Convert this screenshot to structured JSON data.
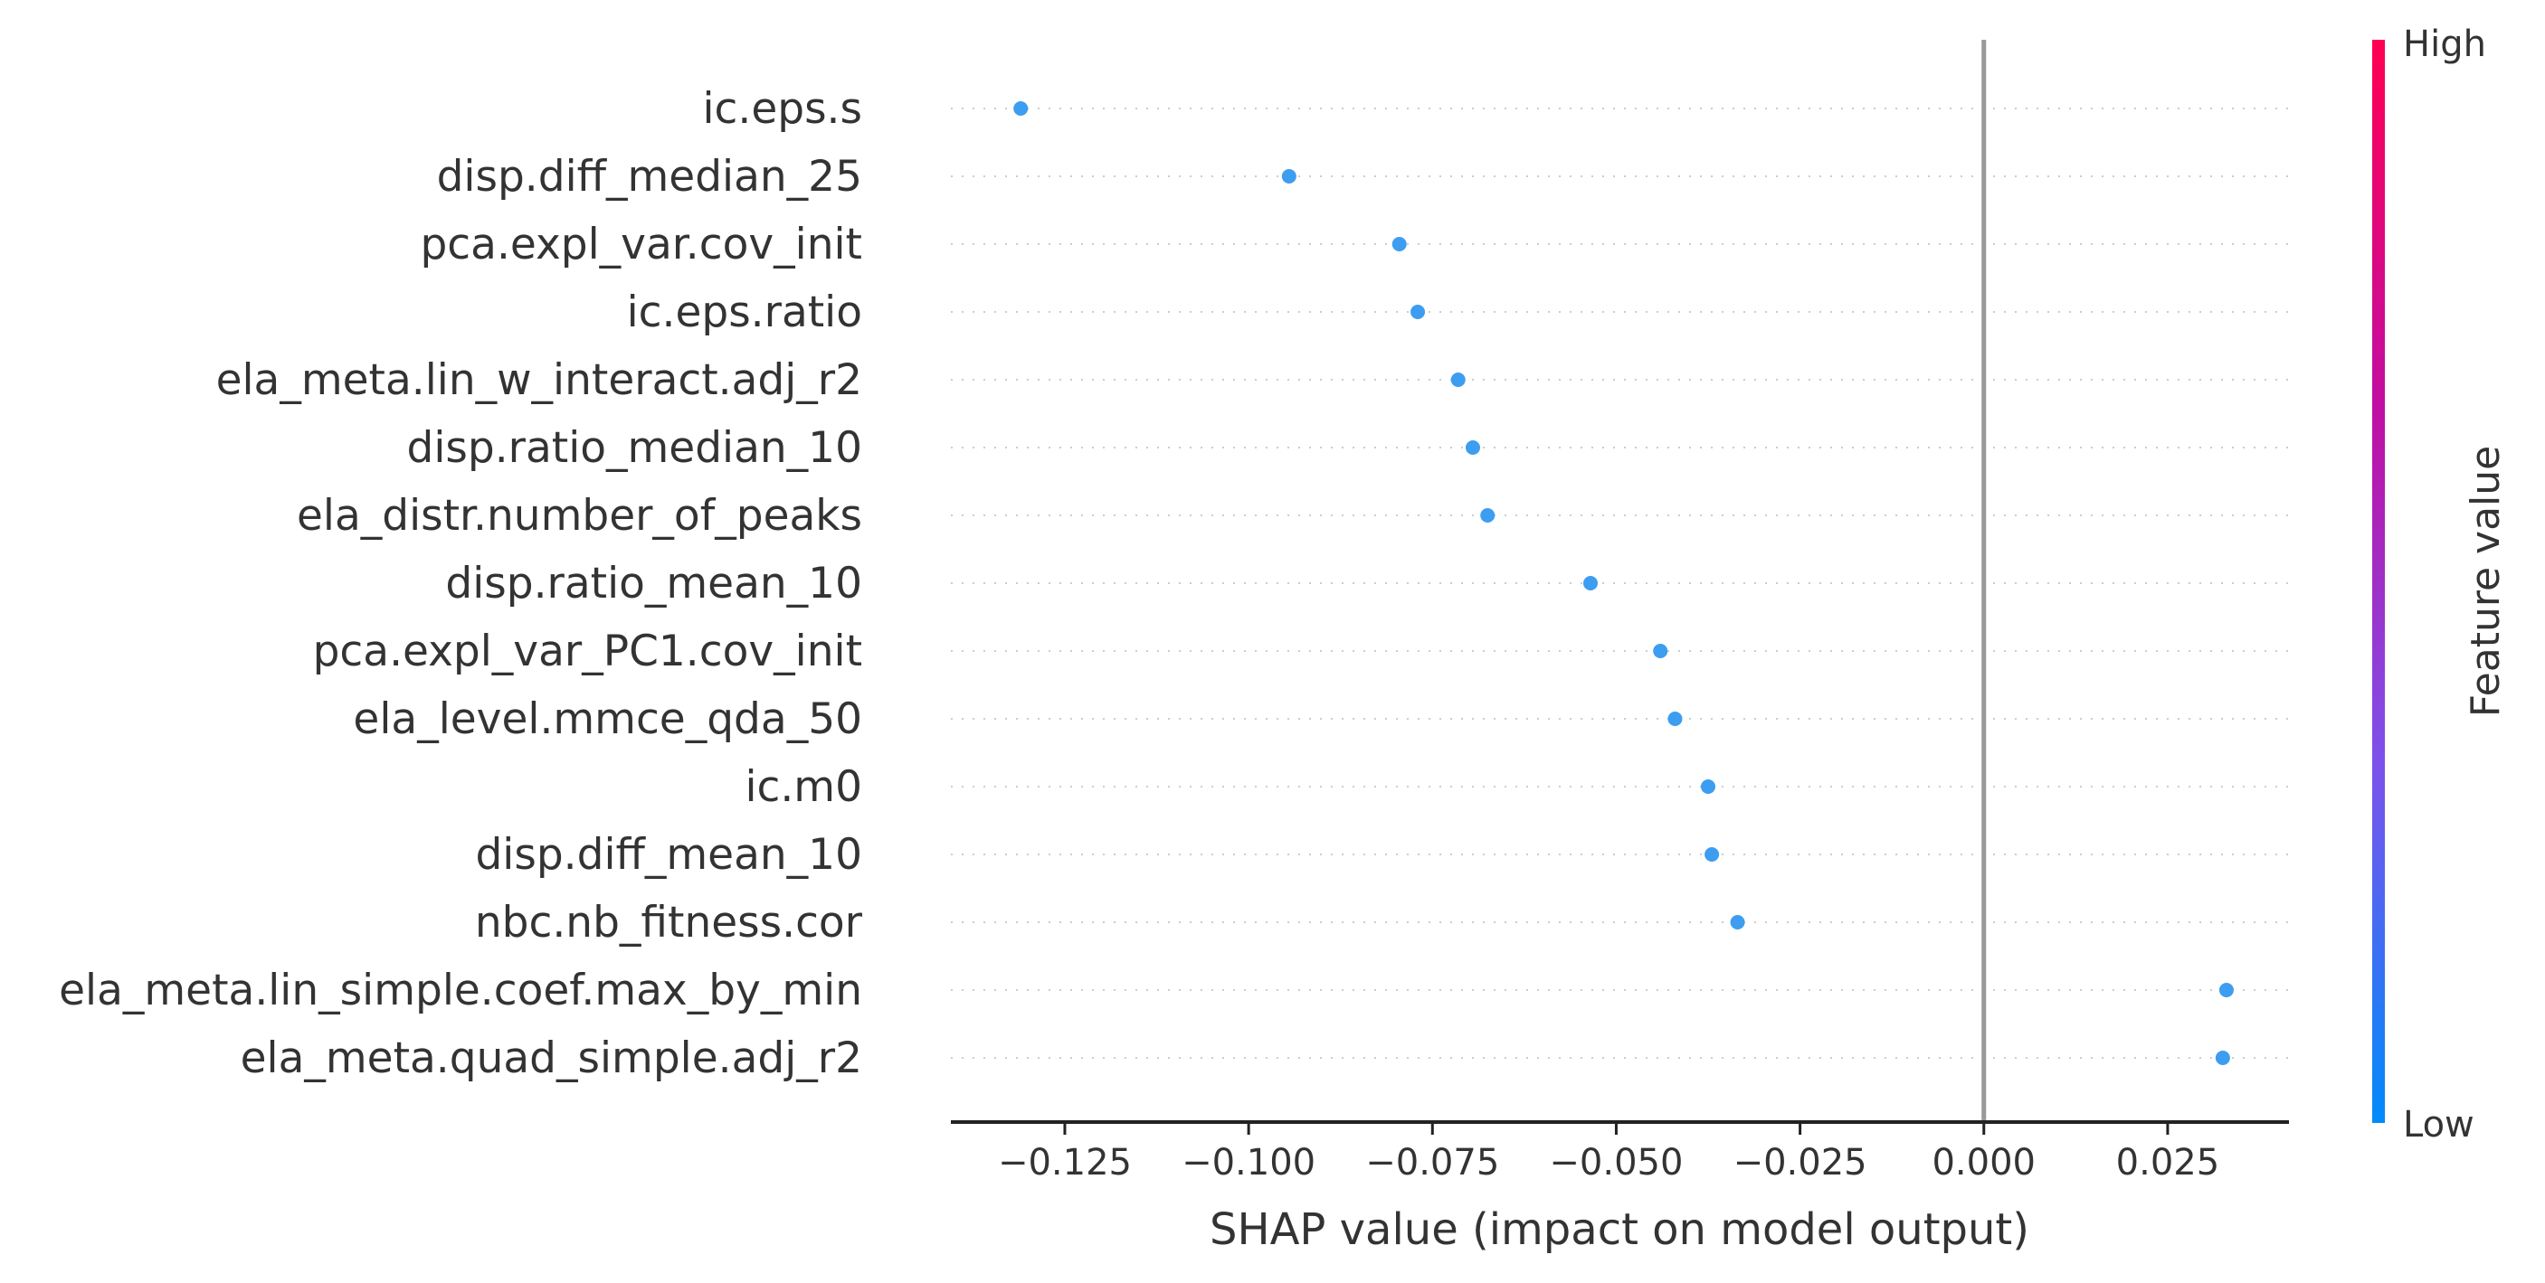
{
  "chart_data": {
    "type": "scatter",
    "subtype": "shap-summary-beeswarm",
    "title": "",
    "xlabel": "SHAP value (impact on model output)",
    "ylabel": "",
    "xlim": [
      -0.1405,
      0.0415
    ],
    "xticks": [
      -0.125,
      -0.1,
      -0.075,
      -0.05,
      -0.025,
      0.0,
      0.025
    ],
    "xtick_labels": [
      "−0.125",
      "−0.100",
      "−0.075",
      "−0.050",
      "−0.025",
      "0.000",
      "0.025"
    ],
    "zero_line": 0.0,
    "row_gridlines": "dotted",
    "features": [
      {
        "name": "ic.eps.s",
        "value": -0.131
      },
      {
        "name": "disp.diff_median_25",
        "value": -0.0945
      },
      {
        "name": "pca.expl_var.cov_init",
        "value": -0.0795
      },
      {
        "name": "ic.eps.ratio",
        "value": -0.077
      },
      {
        "name": "ela_meta.lin_w_interact.adj_r2",
        "value": -0.0715
      },
      {
        "name": "disp.ratio_median_10",
        "value": -0.0695
      },
      {
        "name": "ela_distr.number_of_peaks",
        "value": -0.0675
      },
      {
        "name": "disp.ratio_mean_10",
        "value": -0.0535
      },
      {
        "name": "pca.expl_var_PC1.cov_init",
        "value": -0.044
      },
      {
        "name": "ela_level.mmce_qda_50",
        "value": -0.042
      },
      {
        "name": "ic.m0",
        "value": -0.0375
      },
      {
        "name": "disp.diff_mean_10",
        "value": -0.037
      },
      {
        "name": "nbc.nb_fitness.cor",
        "value": -0.0335
      },
      {
        "name": "ela_meta.lin_simple.coef.max_by_min",
        "value": 0.033
      },
      {
        "name": "ela_meta.quad_simple.adj_r2",
        "value": 0.0325
      }
    ],
    "point_color": "#3d9df0",
    "colorbar": {
      "label": "Feature value",
      "high_label": "High",
      "low_label": "Low",
      "colors": [
        "#008bfb",
        "#7c52ec",
        "#c10ea3",
        "#ff0052"
      ]
    }
  }
}
